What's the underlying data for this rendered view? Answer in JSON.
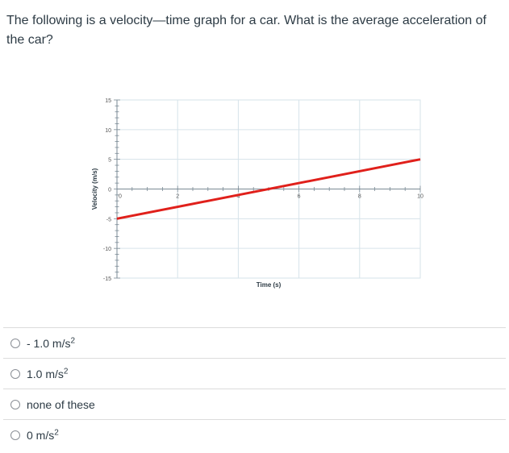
{
  "question": {
    "text": "The following is a velocity—time graph for a car. What is the average acceleration of the car?"
  },
  "chart_data": {
    "type": "line",
    "title": "",
    "xlabel": "Time (s)",
    "ylabel": "Velocity (m/s)",
    "xlim": [
      0,
      10
    ],
    "ylim": [
      -15,
      15
    ],
    "x_ticks": [
      0,
      2,
      4,
      6,
      8,
      10
    ],
    "x_tick_labels": [
      "0",
      "2",
      "4",
      "6",
      "8",
      "10"
    ],
    "y_ticks": [
      -15,
      -10,
      -5,
      0,
      5,
      10,
      15
    ],
    "y_tick_labels": [
      "-15",
      "-10",
      "-5",
      "0",
      "5",
      "10",
      "15"
    ],
    "grid": true,
    "series": [
      {
        "color": "#e0201b",
        "x": [
          0,
          10
        ],
        "y": [
          -5,
          5
        ]
      }
    ]
  },
  "answers": [
    {
      "text": "- 1.0 m/s",
      "sup": "2"
    },
    {
      "text": "1.0 m/s",
      "sup": "2"
    },
    {
      "text": "none of these",
      "sup": ""
    },
    {
      "text": "0 m/s",
      "sup": "2"
    }
  ]
}
